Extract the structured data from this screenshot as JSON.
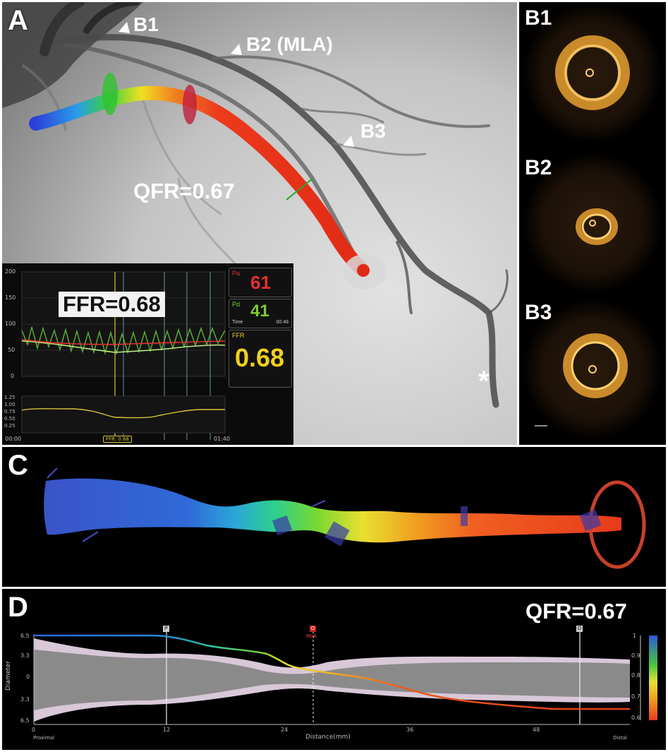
{
  "panels": {
    "a": {
      "label": "A",
      "qfr": "QFR=0.67",
      "markers": [
        "B1",
        "B2 (MLA)",
        "B3"
      ],
      "asterisk": "*"
    },
    "b": {
      "labels": [
        "B1",
        "B2",
        "B3"
      ]
    },
    "c": {
      "label": "C"
    },
    "d": {
      "label": "D",
      "qfr": "QFR=0.67"
    }
  },
  "ffr_monitor": {
    "title": "FFR=0.68",
    "pa_label": "Pa",
    "pa_value": "61",
    "pd_label": "Pd",
    "pd_value": "41",
    "time_label": "Time",
    "time_value": "00:48",
    "ffr_label": "FFR",
    "ffr_value": "0.68",
    "y_ticks_top": [
      "200",
      "150",
      "100",
      "50",
      "0"
    ],
    "y_ticks_bottom": [
      "1.25",
      "1.00",
      "0.75",
      "0.50",
      "0.25"
    ],
    "x_start": "00:00",
    "x_end": "01:40",
    "cursor_tag": "FFR: 0.68"
  },
  "profile": {
    "ylabel": "Diameter",
    "y_ticks": [
      "6.5",
      "3.3",
      "0",
      "3.3",
      "6.5"
    ],
    "xlabel": "Distance(mm)",
    "x_ticks": [
      "0",
      "12",
      "24",
      "36",
      "48"
    ],
    "x_left": "Proximal",
    "x_right": "Distal",
    "markers": {
      "p": "P",
      "o": "O",
      "mla": "MLA",
      "d": "D"
    },
    "colorbar": [
      "1",
      "0.9",
      "0.8",
      "0.7",
      "0.6"
    ]
  },
  "colors": {
    "pa": "#e63030",
    "pd": "#7ccc2e",
    "ffr": "#f0d020",
    "qfr_line": "#e83a1c"
  }
}
